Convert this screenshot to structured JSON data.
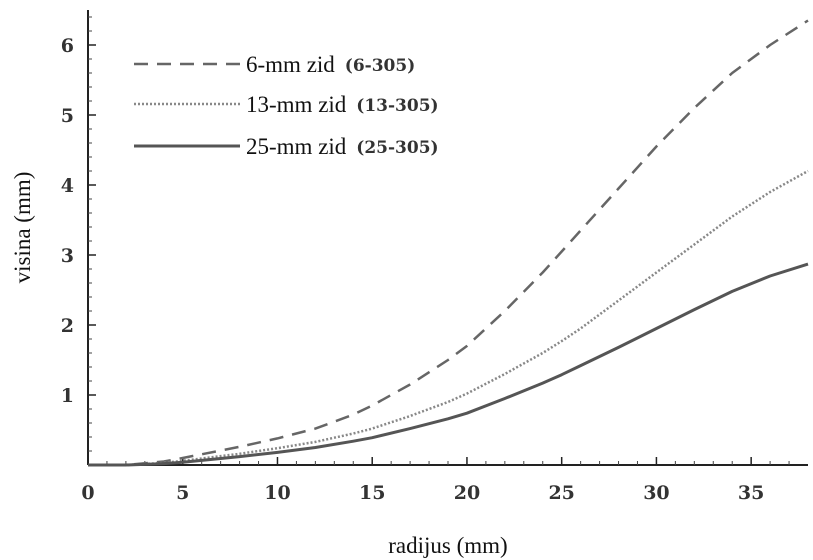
{
  "chart_data": {
    "type": "line",
    "xlabel": "radijus (mm)",
    "ylabel": "visina (mm)",
    "xlim": [
      0,
      38
    ],
    "ylim": [
      0,
      6.5
    ],
    "xticks": [
      0,
      5,
      10,
      15,
      20,
      25,
      30,
      35
    ],
    "yticks": [
      1,
      2,
      3,
      4,
      5,
      6
    ],
    "legend_position": "top-left",
    "grid": false,
    "series": [
      {
        "name": "6-mm zid",
        "code": "(6-305)",
        "style": "dashed",
        "color": "#666666",
        "x": [
          0,
          2,
          4,
          5,
          8,
          10,
          12,
          14,
          15,
          17,
          19,
          20,
          22,
          24,
          25,
          26,
          28,
          30,
          32,
          34,
          36,
          38
        ],
        "y": [
          0,
          0.0,
          0.05,
          0.1,
          0.26,
          0.38,
          0.52,
          0.72,
          0.85,
          1.15,
          1.5,
          1.7,
          2.2,
          2.75,
          3.05,
          3.35,
          3.95,
          4.55,
          5.1,
          5.6,
          6.0,
          6.35
        ]
      },
      {
        "name": "13-mm zid",
        "code": "(13-305)",
        "style": "dotted",
        "color": "#888888",
        "x": [
          0,
          2,
          4,
          5,
          8,
          10,
          12,
          14,
          15,
          17,
          19,
          20,
          22,
          24,
          25,
          26,
          28,
          30,
          32,
          34,
          36,
          38
        ],
        "y": [
          0,
          0.0,
          0.03,
          0.06,
          0.16,
          0.24,
          0.33,
          0.45,
          0.52,
          0.7,
          0.9,
          1.02,
          1.3,
          1.6,
          1.77,
          1.95,
          2.35,
          2.75,
          3.15,
          3.55,
          3.9,
          4.2
        ]
      },
      {
        "name": "25-mm zid",
        "code": "(25-305)",
        "style": "solid",
        "color": "#555555",
        "x": [
          0,
          2,
          4,
          5,
          8,
          10,
          12,
          14,
          15,
          17,
          19,
          20,
          22,
          24,
          25,
          26,
          28,
          30,
          32,
          34,
          36,
          38
        ],
        "y": [
          0,
          0.0,
          0.02,
          0.04,
          0.12,
          0.18,
          0.25,
          0.34,
          0.39,
          0.52,
          0.66,
          0.74,
          0.95,
          1.17,
          1.29,
          1.42,
          1.68,
          1.95,
          2.22,
          2.48,
          2.7,
          2.87
        ]
      }
    ]
  }
}
